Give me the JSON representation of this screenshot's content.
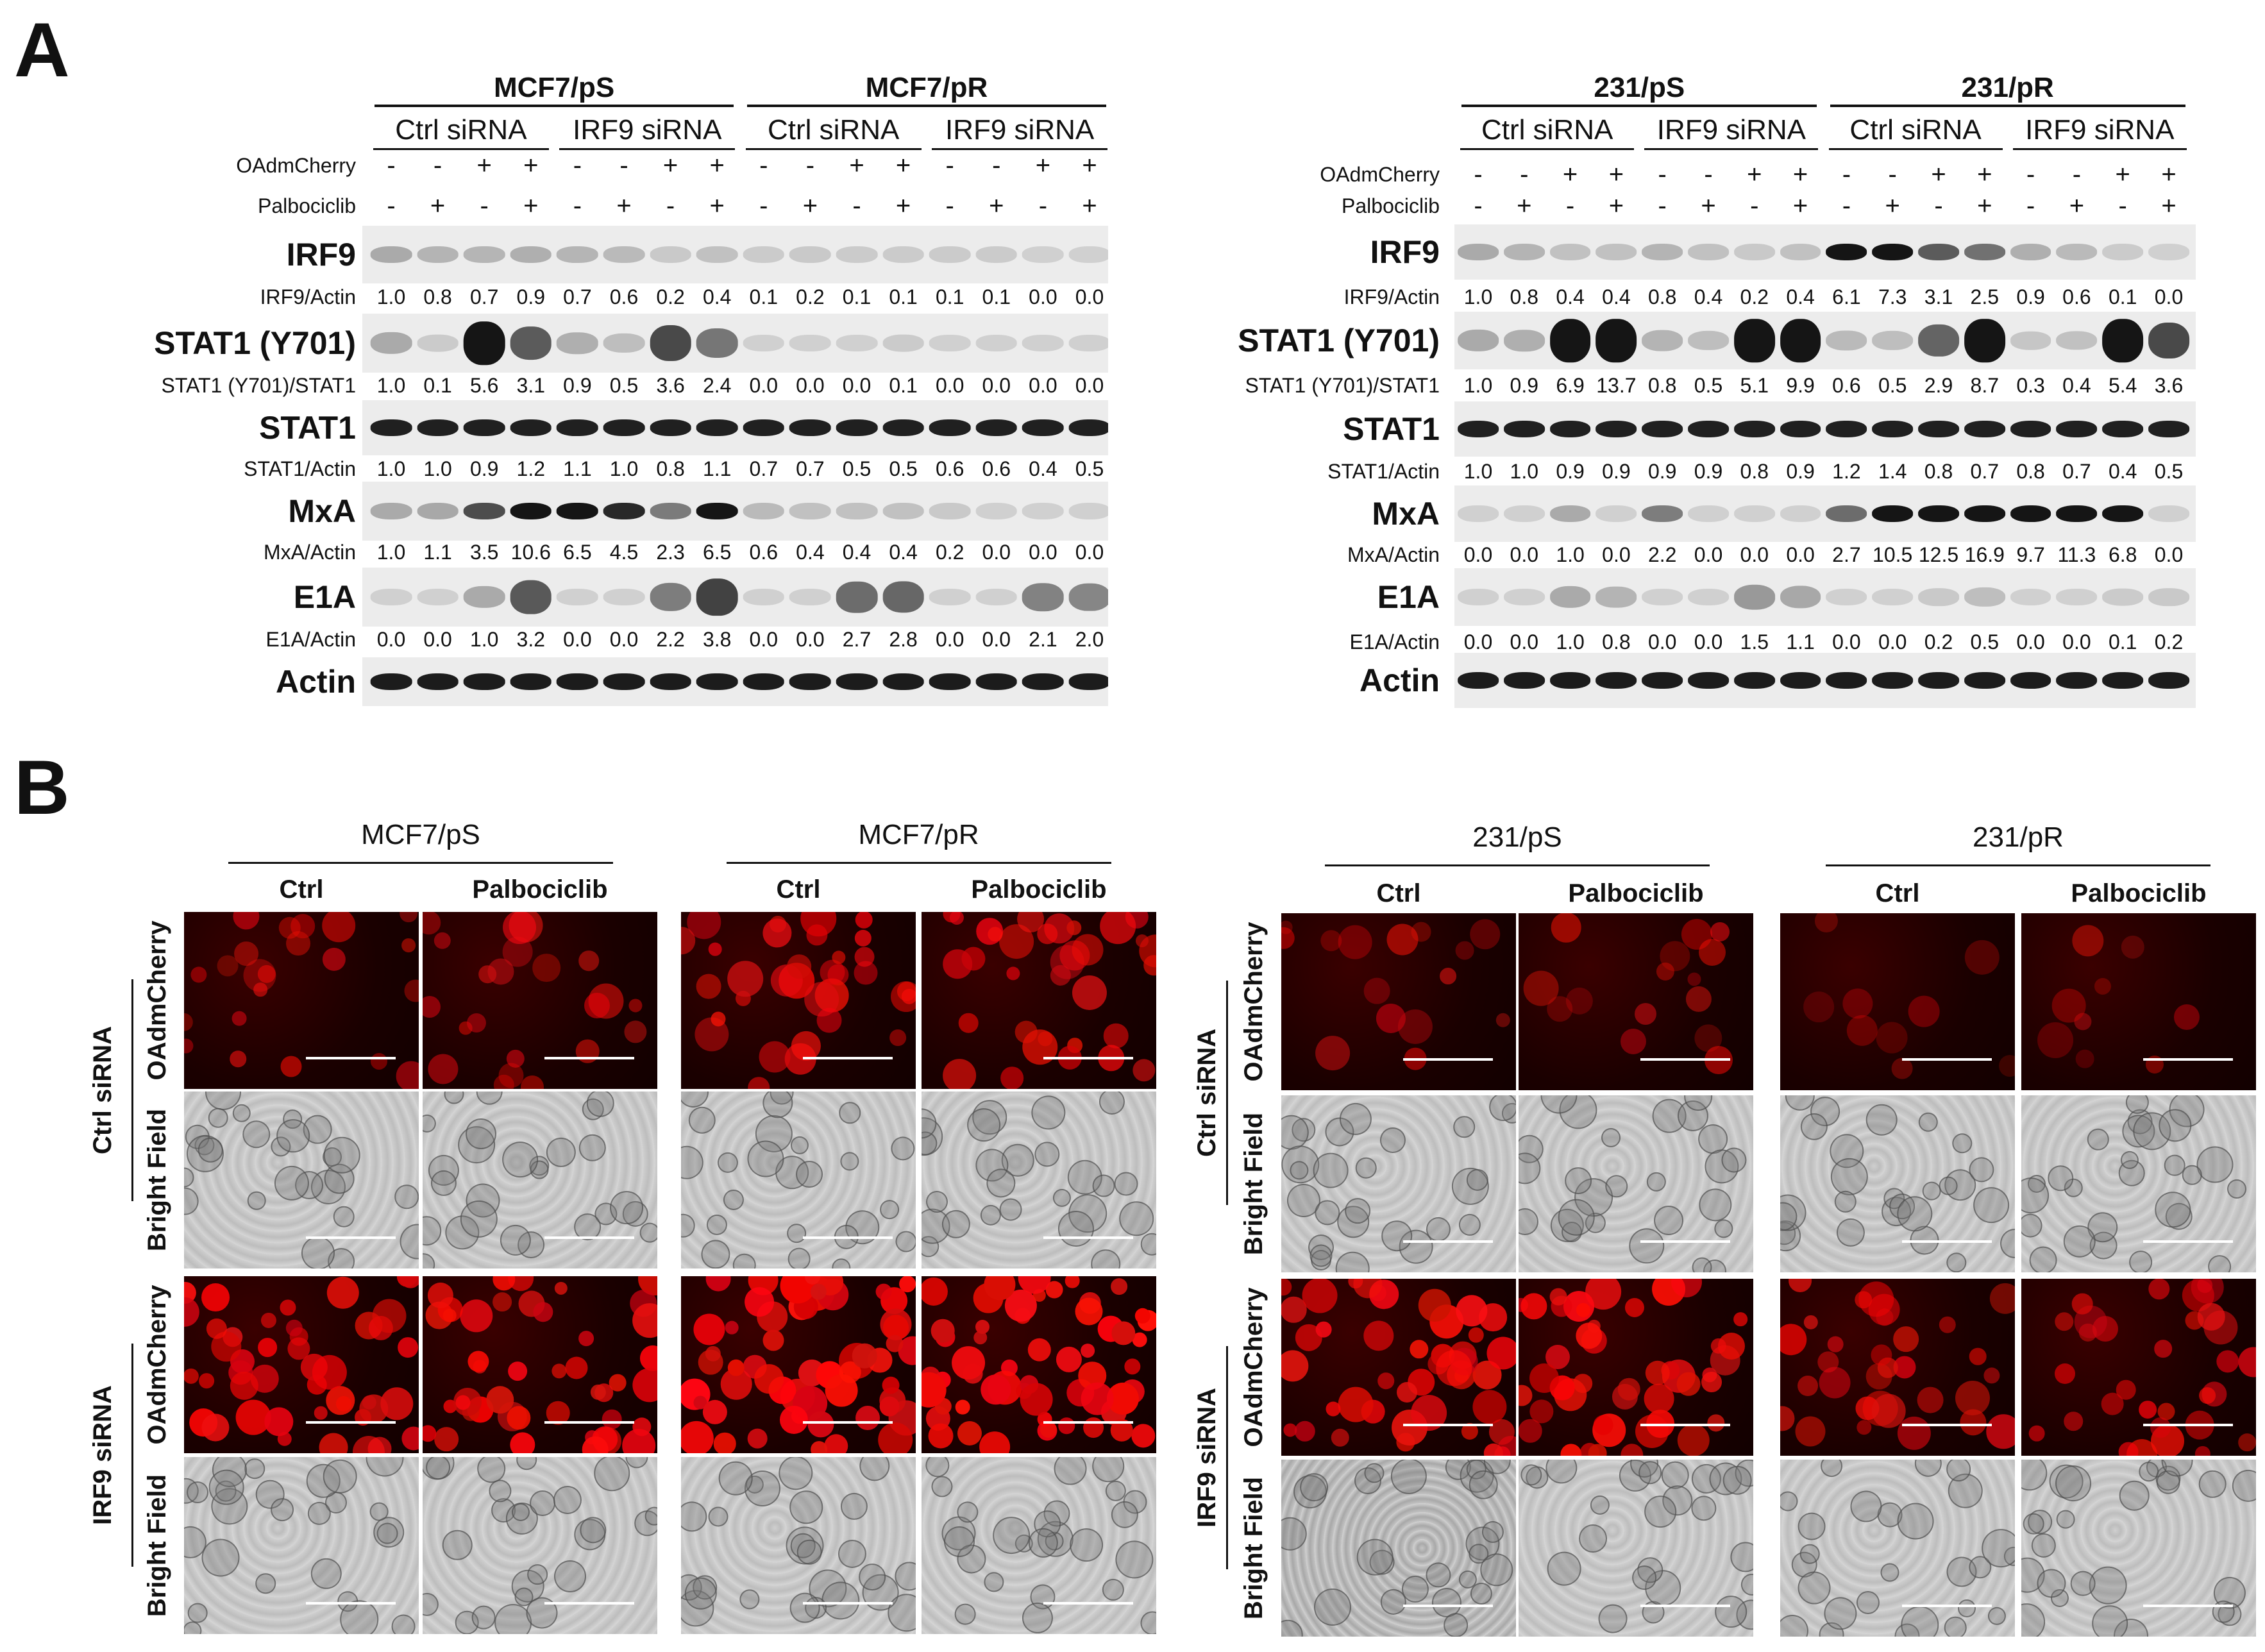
{
  "panels": {
    "a": "A",
    "b": "B"
  },
  "blots": [
    {
      "title": "MCF7/pS",
      "title2": "MCF7/pR",
      "sirna": [
        "Ctrl siRNA",
        "IRF9 siRNA",
        "Ctrl siRNA",
        "IRF9 siRNA"
      ],
      "oad_label": "OAdmCherry",
      "palbo_label": "Palbociclib",
      "oad": [
        "-",
        "-",
        "+",
        "+",
        "-",
        "-",
        "+",
        "+",
        "-",
        "-",
        "+",
        "+",
        "-",
        "-",
        "+",
        "+"
      ],
      "palbo": [
        "-",
        "+",
        "-",
        "+",
        "-",
        "+",
        "-",
        "+",
        "-",
        "+",
        "-",
        "+",
        "-",
        "+",
        "-",
        "+"
      ],
      "rows": [
        {
          "band": "IRF9",
          "ratio": "IRF9/Actin",
          "values": [
            "1.0",
            "0.8",
            "0.7",
            "0.9",
            "0.7",
            "0.6",
            "0.2",
            "0.4",
            "0.1",
            "0.2",
            "0.1",
            "0.1",
            "0.1",
            "0.1",
            "0.0",
            "0.0"
          ]
        },
        {
          "band": "STAT1 (Y701)",
          "ratio": "STAT1 (Y701)/STAT1",
          "values": [
            "1.0",
            "0.1",
            "5.6",
            "3.1",
            "0.9",
            "0.5",
            "3.6",
            "2.4",
            "0.0",
            "0.0",
            "0.0",
            "0.1",
            "0.0",
            "0.0",
            "0.0",
            "0.0"
          ]
        },
        {
          "band": "STAT1",
          "ratio": "STAT1/Actin",
          "values": [
            "1.0",
            "1.0",
            "0.9",
            "1.2",
            "1.1",
            "1.0",
            "0.8",
            "1.1",
            "0.7",
            "0.7",
            "0.5",
            "0.5",
            "0.6",
            "0.6",
            "0.4",
            "0.5"
          ]
        },
        {
          "band": "MxA",
          "ratio": "MxA/Actin",
          "values": [
            "1.0",
            "1.1",
            "3.5",
            "10.6",
            "6.5",
            "4.5",
            "2.3",
            "6.5",
            "0.6",
            "0.4",
            "0.4",
            "0.4",
            "0.2",
            "0.0",
            "0.0",
            "0.0"
          ]
        },
        {
          "band": "E1A",
          "ratio": "E1A/Actin",
          "values": [
            "0.0",
            "0.0",
            "1.0",
            "3.2",
            "0.0",
            "0.0",
            "2.2",
            "3.8",
            "0.0",
            "0.0",
            "2.7",
            "2.8",
            "0.0",
            "0.0",
            "2.1",
            "2.0"
          ]
        },
        {
          "band": "Actin",
          "ratio": "",
          "values": []
        }
      ]
    },
    {
      "title": "231/pS",
      "title2": "231/pR",
      "sirna": [
        "Ctrl siRNA",
        "IRF9 siRNA",
        "Ctrl siRNA",
        "IRF9 siRNA"
      ],
      "oad_label": "OAdmCherry",
      "palbo_label": "Palbociclib",
      "oad": [
        "-",
        "-",
        "+",
        "+",
        "-",
        "-",
        "+",
        "+",
        "-",
        "-",
        "+",
        "+",
        "-",
        "-",
        "+",
        "+"
      ],
      "palbo": [
        "-",
        "+",
        "-",
        "+",
        "-",
        "+",
        "-",
        "+",
        "-",
        "+",
        "-",
        "+",
        "-",
        "+",
        "-",
        "+"
      ],
      "rows": [
        {
          "band": "IRF9",
          "ratio": "IRF9/Actin",
          "values": [
            "1.0",
            "0.8",
            "0.4",
            "0.4",
            "0.8",
            "0.4",
            "0.2",
            "0.4",
            "6.1",
            "7.3",
            "3.1",
            "2.5",
            "0.9",
            "0.6",
            "0.1",
            "0.0"
          ]
        },
        {
          "band": "STAT1 (Y701)",
          "ratio": "STAT1 (Y701)/STAT1",
          "values": [
            "1.0",
            "0.9",
            "6.9",
            "13.7",
            "0.8",
            "0.5",
            "5.1",
            "9.9",
            "0.6",
            "0.5",
            "2.9",
            "8.7",
            "0.3",
            "0.4",
            "5.4",
            "3.6"
          ]
        },
        {
          "band": "STAT1",
          "ratio": "STAT1/Actin",
          "values": [
            "1.0",
            "1.0",
            "0.9",
            "0.9",
            "0.9",
            "0.9",
            "0.8",
            "0.9",
            "1.2",
            "1.4",
            "0.8",
            "0.7",
            "0.8",
            "0.7",
            "0.4",
            "0.5"
          ]
        },
        {
          "band": "MxA",
          "ratio": "MxA/Actin",
          "values": [
            "0.0",
            "0.0",
            "1.0",
            "0.0",
            "2.2",
            "0.0",
            "0.0",
            "0.0",
            "2.7",
            "10.5",
            "12.5",
            "16.9",
            "9.7",
            "11.3",
            "6.8",
            "0.0"
          ]
        },
        {
          "band": "E1A",
          "ratio": "E1A/Actin",
          "values": [
            "0.0",
            "0.0",
            "1.0",
            "0.8",
            "0.0",
            "0.0",
            "1.5",
            "1.1",
            "0.0",
            "0.0",
            "0.2",
            "0.5",
            "0.0",
            "0.0",
            "0.1",
            "0.2"
          ]
        },
        {
          "band": "Actin",
          "ratio": "",
          "values": []
        }
      ]
    }
  ],
  "micro_groups": [
    {
      "title": "MCF7/pS",
      "cols": [
        "Ctrl",
        "Palbociclib"
      ]
    },
    {
      "title": "MCF7/pR",
      "cols": [
        "Ctrl",
        "Palbociclib"
      ]
    },
    {
      "title": "231/pS",
      "cols": [
        "Ctrl",
        "Palbociclib"
      ]
    },
    {
      "title": "231/pR",
      "cols": [
        "Ctrl",
        "Palbociclib"
      ]
    }
  ],
  "micro_rows": {
    "groups": [
      "Ctrl siRNA",
      "IRF9 siRNA"
    ],
    "channels": [
      "OAdmCherry",
      "Bright Field"
    ]
  }
}
